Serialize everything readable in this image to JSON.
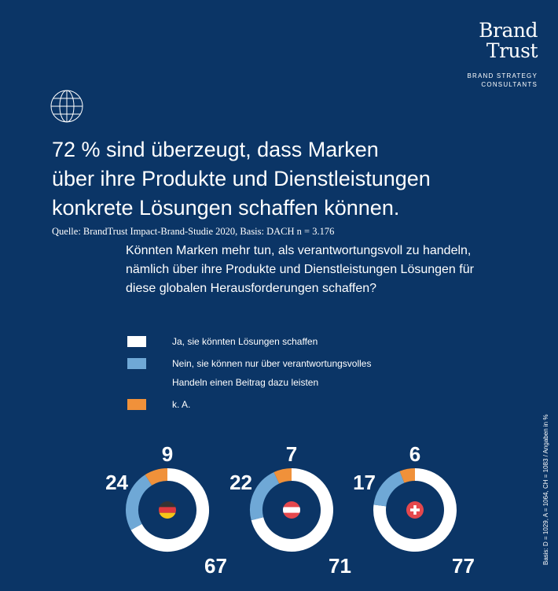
{
  "logo": {
    "line1": "Brand",
    "line2": "Trust",
    "tag1": "BRAND STRATEGY",
    "tag2": "CONSULTANTS"
  },
  "icon": "globe-icon",
  "title": [
    "72 % sind überzeugt, dass Marken",
    "über ihre Produkte und Dienstleistungen",
    "konkrete Lösungen schaffen können."
  ],
  "source": "Quelle: BrandTrust Impact-Brand-Studie 2020, Basis: DACH n = 3.176",
  "question": "Könnten Marken mehr tun, als verantwortungsvoll zu handeln, nämlich über ihre Produkte und Dienstleistungen Lösungen für diese globalen Herausforderungen schaffen?",
  "basis": "Basis: D = 1029, A = 1064, CH = 1083 / Angaben in %",
  "chart_data": {
    "type": "donut",
    "legend": [
      {
        "label": "Ja, sie könnten Lösungen schaffen",
        "color": "#ffffff"
      },
      {
        "label": "Nein, sie können nur über verantwortungsvolles",
        "label2": "Handeln einen Beitrag dazu leisten",
        "color": "#6fa8d6"
      },
      {
        "label": "k. A.",
        "color": "#f0913a"
      }
    ],
    "charts": [
      {
        "country": "Germany",
        "flag": "germany-flag-icon",
        "values": [
          67,
          24,
          9
        ]
      },
      {
        "country": "Austria",
        "flag": "austria-flag-icon",
        "values": [
          71,
          22,
          7
        ]
      },
      {
        "country": "Switzerland",
        "flag": "switzerland-flag-icon",
        "values": [
          77,
          17,
          6
        ]
      }
    ]
  }
}
